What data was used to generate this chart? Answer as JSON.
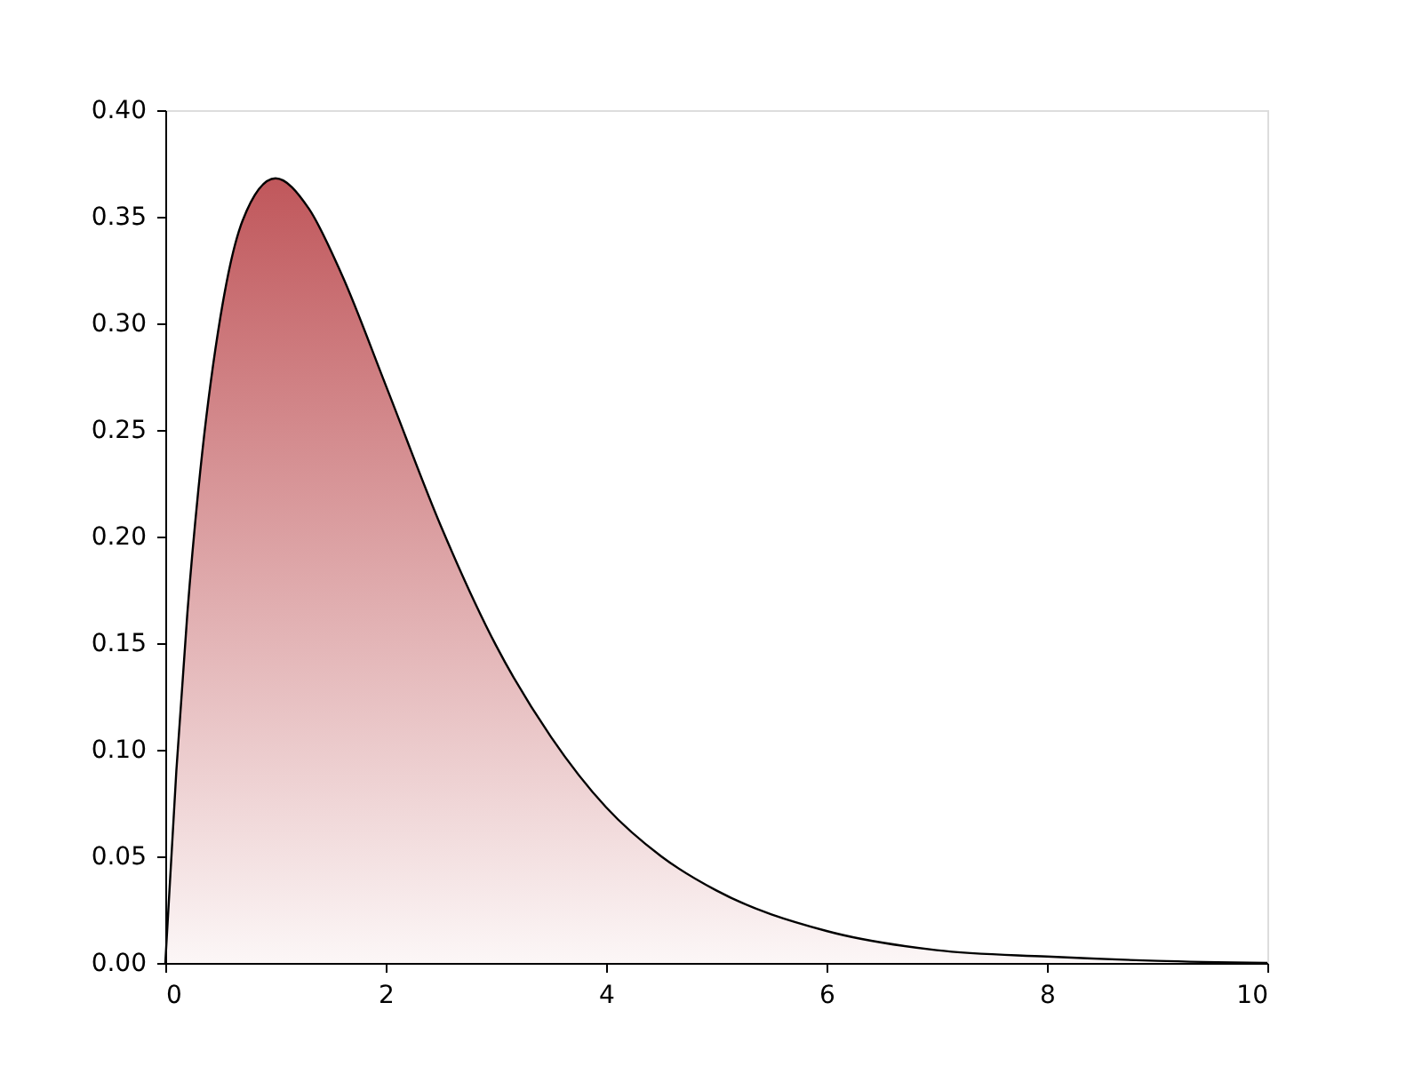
{
  "chart_data": {
    "type": "area",
    "x": [
      0,
      0.1,
      0.2,
      0.3,
      0.5,
      0.7,
      1,
      1.3,
      1.6,
      2,
      2.5,
      3,
      3.5,
      4,
      4.5,
      5,
      6,
      7,
      8,
      9,
      10
    ],
    "series": [
      {
        "color": "#a50f15",
        "values": [
          0,
          0.09,
          0.164,
          0.222,
          0.303,
          0.348,
          0.368,
          0.354,
          0.323,
          0.271,
          0.205,
          0.149,
          0.106,
          0.073,
          0.05,
          0.034,
          0.015,
          0.006,
          0.003,
          0.001,
          0.0
        ]
      }
    ],
    "xlim": [
      0,
      10
    ],
    "xticks": [
      0,
      2,
      4,
      6,
      8,
      10
    ],
    "ylim": [
      0,
      0.4
    ],
    "yticks": [
      {
        "value": 0,
        "label": "0.00"
      },
      {
        "value": 0.05,
        "label": "0.05"
      },
      {
        "value": 0.1,
        "label": "0.10"
      },
      {
        "value": 0.15,
        "label": "0.15"
      },
      {
        "value": 0.2,
        "label": "0.20"
      },
      {
        "value": 0.25,
        "label": "0.25"
      },
      {
        "value": 0.3,
        "label": "0.30"
      },
      {
        "value": 0.35,
        "label": "0.35"
      },
      {
        "value": 0.4,
        "label": "0.40"
      }
    ],
    "grid": false
  }
}
